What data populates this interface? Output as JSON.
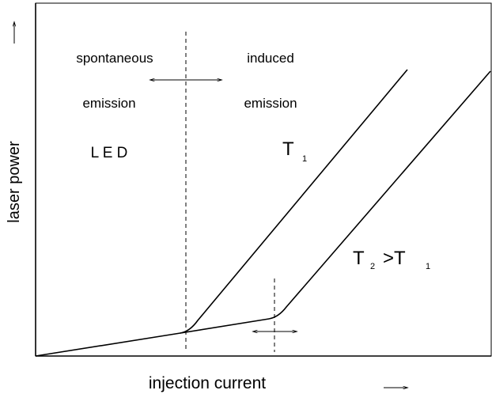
{
  "axes": {
    "y_label": "laser power",
    "x_label": "injection current"
  },
  "regions": {
    "left": {
      "line1": "spontaneous",
      "line2": "emission",
      "line3": "L E D"
    },
    "right": {
      "line1": "induced",
      "line2": "emission"
    }
  },
  "curves": {
    "t1": {
      "main": "T",
      "sub": "1"
    },
    "t2": {
      "main": "T",
      "sub": "2",
      "rel": ">T",
      "sub2": "1"
    }
  }
}
